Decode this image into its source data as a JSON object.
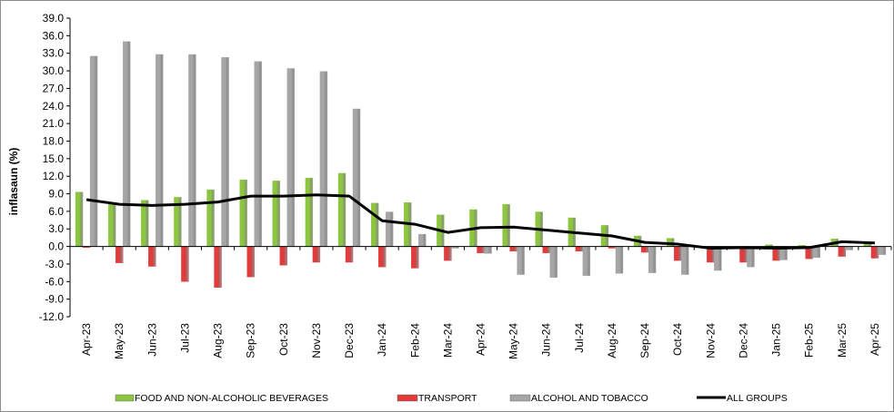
{
  "chart_data": {
    "type": "bar",
    "ylabel": "inflasaun (%)",
    "xlabel": "",
    "ylim": [
      -12.0,
      39.0
    ],
    "ytick_step": 3.0,
    "grid": false,
    "legend_position": "bottom",
    "categories": [
      "Apr-23",
      "May-23",
      "Jun-23",
      "Jul-23",
      "Aug-23",
      "Sep-23",
      "Oct-23",
      "Nov-23",
      "Dec-23",
      "Jan-24",
      "Feb-24",
      "Mar-24",
      "Apr-24",
      "May-24",
      "Jun-24",
      "Jul-24",
      "Aug-24",
      "Sep-24",
      "Oct-24",
      "Nov-24",
      "Dec-24",
      "Jan-25",
      "Feb-25",
      "Mar-25",
      "Apr-25"
    ],
    "series": [
      {
        "name": "FOOD AND NON-ALCOHOLIC BEVERAGES",
        "kind": "bar",
        "color": "#8cc63f",
        "values": [
          9.3,
          7.3,
          7.9,
          8.4,
          9.7,
          11.4,
          11.2,
          11.7,
          12.5,
          7.4,
          7.5,
          5.4,
          6.3,
          7.2,
          5.9,
          4.9,
          3.6,
          1.8,
          1.4,
          -0.2,
          -0.2,
          0.3,
          0.2,
          1.3,
          0.6
        ]
      },
      {
        "name": "TRANSPORT",
        "kind": "bar",
        "color": "#e23b3b",
        "values": [
          -0.2,
          -2.8,
          -3.4,
          -6.0,
          -7.0,
          -5.2,
          -3.2,
          -2.7,
          -2.7,
          -3.5,
          -3.7,
          -2.4,
          -1.1,
          -0.8,
          -1.1,
          -0.8,
          -0.3,
          -1.0,
          -2.4,
          -2.7,
          -2.7,
          -2.4,
          -2.1,
          -1.7,
          -2.0
        ]
      },
      {
        "name": "ALCOHOL AND TOBACCO",
        "kind": "bar",
        "color": "#a6a6a6",
        "values": [
          32.5,
          35.0,
          32.8,
          32.8,
          32.3,
          31.6,
          30.4,
          29.9,
          23.5,
          5.9,
          2.1,
          -0.3,
          -1.2,
          -4.8,
          -5.3,
          -5.0,
          -4.6,
          -4.5,
          -4.8,
          -4.1,
          -3.5,
          -2.3,
          -1.9,
          -0.6,
          -1.4
        ]
      },
      {
        "name": "ALL GROUPS",
        "kind": "line",
        "color": "#000000",
        "values": [
          8.0,
          7.2,
          7.0,
          7.2,
          7.6,
          8.6,
          8.6,
          8.8,
          8.6,
          4.4,
          3.8,
          2.4,
          3.2,
          3.3,
          2.8,
          2.3,
          1.8,
          0.7,
          0.4,
          -0.3,
          -0.2,
          -0.3,
          -0.2,
          0.8,
          0.6
        ]
      }
    ]
  }
}
